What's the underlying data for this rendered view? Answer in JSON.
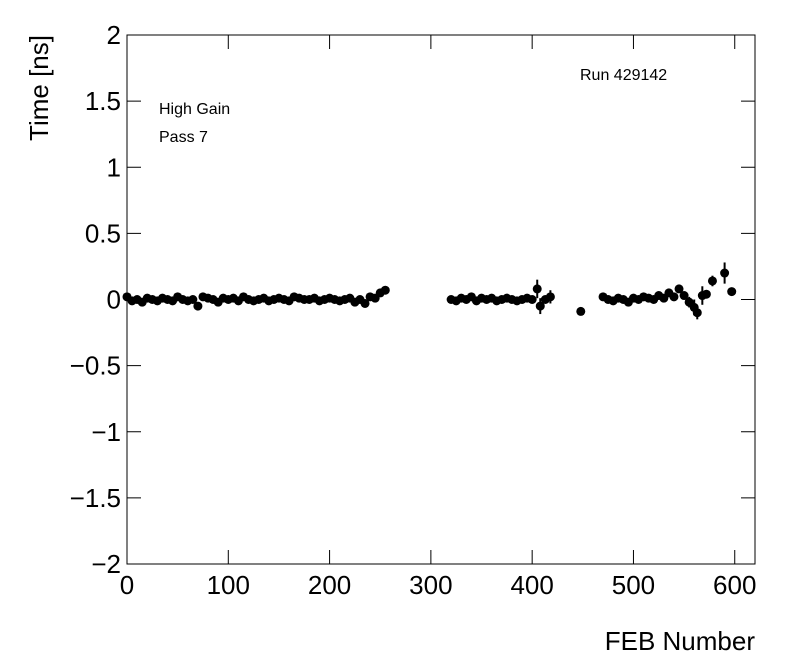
{
  "chart_data": {
    "type": "scatter",
    "x_label": "FEB Number",
    "y_label": "Time [ns]",
    "annotations": [
      "Run 429142",
      "High Gain",
      "Pass 7"
    ],
    "xlim": [
      0,
      620
    ],
    "ylim": [
      -2,
      2
    ],
    "xticks": [
      0,
      100,
      200,
      300,
      400,
      500,
      600
    ],
    "yticks": [
      {
        "value": -2,
        "label": "−2"
      },
      {
        "value": -1.5,
        "label": "−1.5"
      },
      {
        "value": -1,
        "label": "−1"
      },
      {
        "value": -0.5,
        "label": "−0.5"
      },
      0,
      0.5,
      1,
      1.5,
      2
    ],
    "color": "#000000",
    "x": [
      0,
      5,
      10,
      15,
      20,
      25,
      30,
      35,
      40,
      45,
      50,
      55,
      60,
      65,
      70,
      75,
      80,
      85,
      90,
      95,
      100,
      105,
      110,
      115,
      120,
      125,
      130,
      135,
      140,
      145,
      150,
      155,
      160,
      165,
      170,
      175,
      180,
      185,
      190,
      195,
      200,
      205,
      210,
      215,
      220,
      225,
      230,
      235,
      240,
      245,
      250,
      255,
      320,
      325,
      330,
      335,
      340,
      345,
      350,
      355,
      360,
      365,
      370,
      375,
      380,
      385,
      390,
      395,
      400,
      405,
      408,
      413,
      418,
      448,
      470,
      475,
      480,
      485,
      490,
      495,
      500,
      505,
      510,
      515,
      520,
      525,
      530,
      535,
      540,
      545,
      550,
      555,
      560,
      563,
      568,
      572,
      578,
      590,
      597
    ],
    "values": [
      0.02,
      -0.01,
      0.0,
      -0.02,
      0.01,
      0.0,
      -0.01,
      0.01,
      0.0,
      -0.01,
      0.02,
      0.0,
      -0.01,
      0.0,
      -0.05,
      0.02,
      0.01,
      0.0,
      -0.02,
      0.01,
      0.0,
      0.01,
      -0.01,
      0.02,
      0.0,
      -0.01,
      0.0,
      0.01,
      -0.01,
      0.0,
      0.01,
      0.0,
      -0.01,
      0.02,
      0.01,
      0.0,
      0.0,
      0.01,
      -0.01,
      0.0,
      0.01,
      0.0,
      -0.01,
      0.0,
      0.01,
      -0.02,
      0.0,
      -0.03,
      0.02,
      0.01,
      0.05,
      0.07,
      0.0,
      -0.01,
      0.01,
      0.0,
      0.02,
      -0.01,
      0.01,
      0.0,
      0.01,
      -0.01,
      0.0,
      0.01,
      0.0,
      -0.01,
      0.0,
      0.01,
      0.0,
      0.08,
      -0.05,
      0.0,
      0.02,
      -0.09,
      0.02,
      0.0,
      -0.01,
      0.01,
      0.0,
      -0.02,
      0.01,
      0.0,
      0.02,
      0.01,
      0.0,
      0.03,
      0.01,
      0.05,
      0.02,
      0.08,
      0.03,
      -0.02,
      -0.06,
      -0.1,
      0.03,
      0.04,
      0.14,
      0.2,
      0.06
    ],
    "errors": [
      0.015,
      0.015,
      0.015,
      0.015,
      0.015,
      0.015,
      0.015,
      0.015,
      0.015,
      0.015,
      0.015,
      0.015,
      0.015,
      0.015,
      0.015,
      0.015,
      0.015,
      0.015,
      0.015,
      0.015,
      0.015,
      0.015,
      0.015,
      0.015,
      0.015,
      0.015,
      0.015,
      0.015,
      0.015,
      0.015,
      0.015,
      0.015,
      0.015,
      0.015,
      0.015,
      0.015,
      0.015,
      0.015,
      0.015,
      0.015,
      0.015,
      0.015,
      0.015,
      0.015,
      0.015,
      0.015,
      0.015,
      0.015,
      0.015,
      0.015,
      0.02,
      0.02,
      0.015,
      0.015,
      0.015,
      0.015,
      0.015,
      0.015,
      0.015,
      0.015,
      0.015,
      0.015,
      0.015,
      0.015,
      0.015,
      0.015,
      0.015,
      0.015,
      0.015,
      0.07,
      0.06,
      0.03,
      0.05,
      0.03,
      0.015,
      0.015,
      0.015,
      0.015,
      0.015,
      0.015,
      0.015,
      0.015,
      0.015,
      0.015,
      0.015,
      0.015,
      0.015,
      0.015,
      0.015,
      0.03,
      0.02,
      0.04,
      0.06,
      0.05,
      0.07,
      0.03,
      0.04,
      0.08,
      0.02
    ]
  }
}
